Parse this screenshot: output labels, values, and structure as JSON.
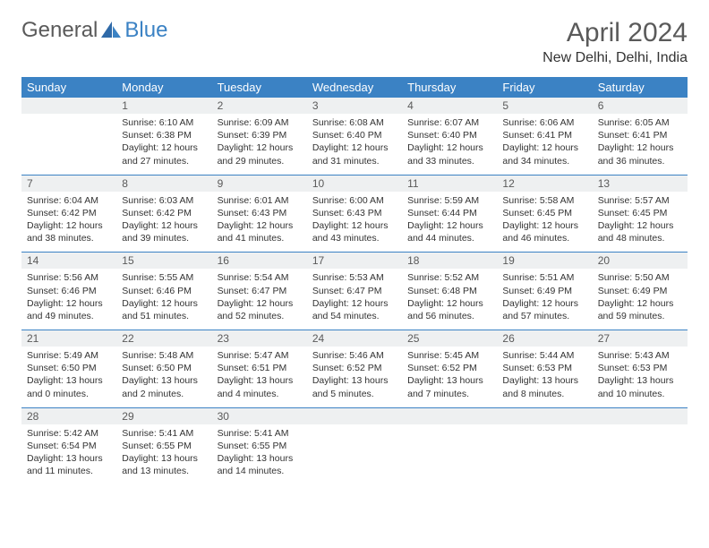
{
  "brand": {
    "word1": "General",
    "word2": "Blue"
  },
  "title": {
    "month": "April 2024",
    "location": "New Delhi, Delhi, India"
  },
  "colors": {
    "header_bg": "#3b82c4",
    "header_text": "#ffffff",
    "daynum_bg": "#eef0f1",
    "divider": "#3b82c4",
    "body_text": "#333333",
    "title_text": "#5a5a5a"
  },
  "weekdays": [
    "Sunday",
    "Monday",
    "Tuesday",
    "Wednesday",
    "Thursday",
    "Friday",
    "Saturday"
  ],
  "weeks": [
    {
      "nums": [
        "",
        "1",
        "2",
        "3",
        "4",
        "5",
        "6"
      ],
      "cells": [
        null,
        {
          "sunrise": "Sunrise: 6:10 AM",
          "sunset": "Sunset: 6:38 PM",
          "daylight": "Daylight: 12 hours and 27 minutes."
        },
        {
          "sunrise": "Sunrise: 6:09 AM",
          "sunset": "Sunset: 6:39 PM",
          "daylight": "Daylight: 12 hours and 29 minutes."
        },
        {
          "sunrise": "Sunrise: 6:08 AM",
          "sunset": "Sunset: 6:40 PM",
          "daylight": "Daylight: 12 hours and 31 minutes."
        },
        {
          "sunrise": "Sunrise: 6:07 AM",
          "sunset": "Sunset: 6:40 PM",
          "daylight": "Daylight: 12 hours and 33 minutes."
        },
        {
          "sunrise": "Sunrise: 6:06 AM",
          "sunset": "Sunset: 6:41 PM",
          "daylight": "Daylight: 12 hours and 34 minutes."
        },
        {
          "sunrise": "Sunrise: 6:05 AM",
          "sunset": "Sunset: 6:41 PM",
          "daylight": "Daylight: 12 hours and 36 minutes."
        }
      ]
    },
    {
      "nums": [
        "7",
        "8",
        "9",
        "10",
        "11",
        "12",
        "13"
      ],
      "cells": [
        {
          "sunrise": "Sunrise: 6:04 AM",
          "sunset": "Sunset: 6:42 PM",
          "daylight": "Daylight: 12 hours and 38 minutes."
        },
        {
          "sunrise": "Sunrise: 6:03 AM",
          "sunset": "Sunset: 6:42 PM",
          "daylight": "Daylight: 12 hours and 39 minutes."
        },
        {
          "sunrise": "Sunrise: 6:01 AM",
          "sunset": "Sunset: 6:43 PM",
          "daylight": "Daylight: 12 hours and 41 minutes."
        },
        {
          "sunrise": "Sunrise: 6:00 AM",
          "sunset": "Sunset: 6:43 PM",
          "daylight": "Daylight: 12 hours and 43 minutes."
        },
        {
          "sunrise": "Sunrise: 5:59 AM",
          "sunset": "Sunset: 6:44 PM",
          "daylight": "Daylight: 12 hours and 44 minutes."
        },
        {
          "sunrise": "Sunrise: 5:58 AM",
          "sunset": "Sunset: 6:45 PM",
          "daylight": "Daylight: 12 hours and 46 minutes."
        },
        {
          "sunrise": "Sunrise: 5:57 AM",
          "sunset": "Sunset: 6:45 PM",
          "daylight": "Daylight: 12 hours and 48 minutes."
        }
      ]
    },
    {
      "nums": [
        "14",
        "15",
        "16",
        "17",
        "18",
        "19",
        "20"
      ],
      "cells": [
        {
          "sunrise": "Sunrise: 5:56 AM",
          "sunset": "Sunset: 6:46 PM",
          "daylight": "Daylight: 12 hours and 49 minutes."
        },
        {
          "sunrise": "Sunrise: 5:55 AM",
          "sunset": "Sunset: 6:46 PM",
          "daylight": "Daylight: 12 hours and 51 minutes."
        },
        {
          "sunrise": "Sunrise: 5:54 AM",
          "sunset": "Sunset: 6:47 PM",
          "daylight": "Daylight: 12 hours and 52 minutes."
        },
        {
          "sunrise": "Sunrise: 5:53 AM",
          "sunset": "Sunset: 6:47 PM",
          "daylight": "Daylight: 12 hours and 54 minutes."
        },
        {
          "sunrise": "Sunrise: 5:52 AM",
          "sunset": "Sunset: 6:48 PM",
          "daylight": "Daylight: 12 hours and 56 minutes."
        },
        {
          "sunrise": "Sunrise: 5:51 AM",
          "sunset": "Sunset: 6:49 PM",
          "daylight": "Daylight: 12 hours and 57 minutes."
        },
        {
          "sunrise": "Sunrise: 5:50 AM",
          "sunset": "Sunset: 6:49 PM",
          "daylight": "Daylight: 12 hours and 59 minutes."
        }
      ]
    },
    {
      "nums": [
        "21",
        "22",
        "23",
        "24",
        "25",
        "26",
        "27"
      ],
      "cells": [
        {
          "sunrise": "Sunrise: 5:49 AM",
          "sunset": "Sunset: 6:50 PM",
          "daylight": "Daylight: 13 hours and 0 minutes."
        },
        {
          "sunrise": "Sunrise: 5:48 AM",
          "sunset": "Sunset: 6:50 PM",
          "daylight": "Daylight: 13 hours and 2 minutes."
        },
        {
          "sunrise": "Sunrise: 5:47 AM",
          "sunset": "Sunset: 6:51 PM",
          "daylight": "Daylight: 13 hours and 4 minutes."
        },
        {
          "sunrise": "Sunrise: 5:46 AM",
          "sunset": "Sunset: 6:52 PM",
          "daylight": "Daylight: 13 hours and 5 minutes."
        },
        {
          "sunrise": "Sunrise: 5:45 AM",
          "sunset": "Sunset: 6:52 PM",
          "daylight": "Daylight: 13 hours and 7 minutes."
        },
        {
          "sunrise": "Sunrise: 5:44 AM",
          "sunset": "Sunset: 6:53 PM",
          "daylight": "Daylight: 13 hours and 8 minutes."
        },
        {
          "sunrise": "Sunrise: 5:43 AM",
          "sunset": "Sunset: 6:53 PM",
          "daylight": "Daylight: 13 hours and 10 minutes."
        }
      ]
    },
    {
      "nums": [
        "28",
        "29",
        "30",
        "",
        "",
        "",
        ""
      ],
      "cells": [
        {
          "sunrise": "Sunrise: 5:42 AM",
          "sunset": "Sunset: 6:54 PM",
          "daylight": "Daylight: 13 hours and 11 minutes."
        },
        {
          "sunrise": "Sunrise: 5:41 AM",
          "sunset": "Sunset: 6:55 PM",
          "daylight": "Daylight: 13 hours and 13 minutes."
        },
        {
          "sunrise": "Sunrise: 5:41 AM",
          "sunset": "Sunset: 6:55 PM",
          "daylight": "Daylight: 13 hours and 14 minutes."
        },
        null,
        null,
        null,
        null
      ]
    }
  ]
}
